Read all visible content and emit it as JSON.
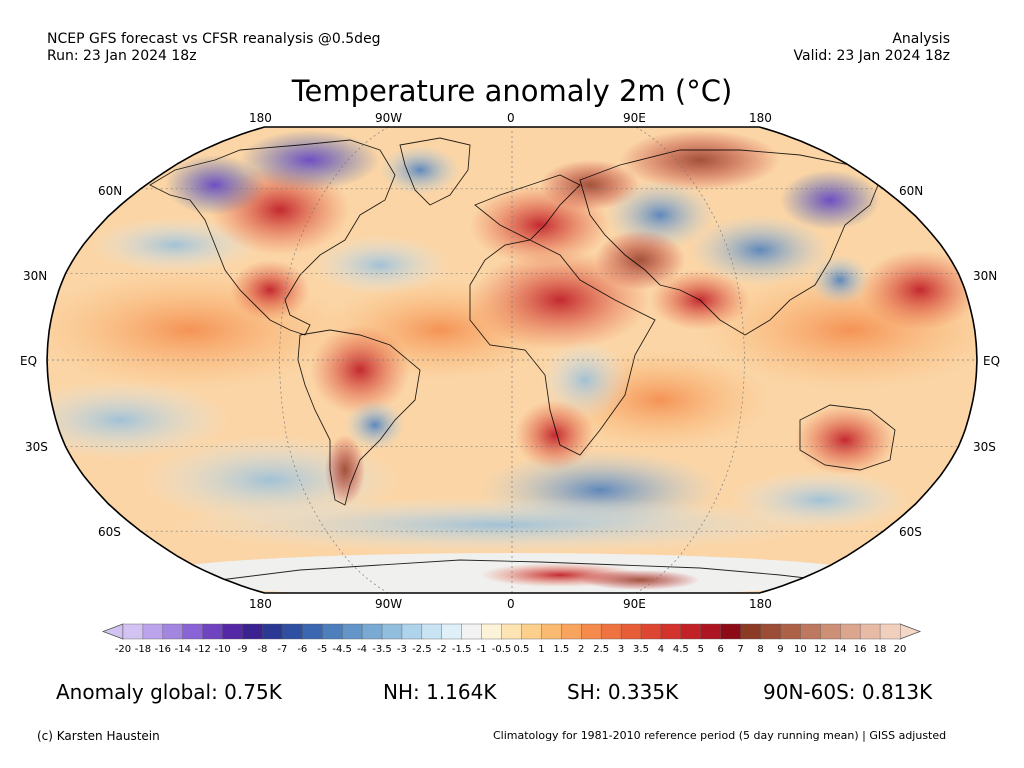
{
  "header": {
    "left_line1": "NCEP GFS forecast vs CFSR reanalysis @0.5deg",
    "left_line2": "Run: 23 Jan 2024 18z",
    "right_line1": "Analysis",
    "right_line2": "Valid: 23 Jan 2024 18z"
  },
  "title": "Temperature anomaly 2m (°C)",
  "map": {
    "projection": "Robinson",
    "lon_labels": [
      "180",
      "90W",
      "0",
      "90E",
      "180"
    ],
    "lat_labels_left": [
      "60N",
      "30N",
      "EQ",
      "30S",
      "60S"
    ],
    "lat_labels_right": [
      "60N",
      "30N",
      "EQ",
      "30S",
      "60S"
    ]
  },
  "colorbar": {
    "ticks": [
      "-20",
      "-18",
      "-16",
      "-14",
      "-12",
      "-10",
      "-9",
      "-8",
      "-7",
      "-6",
      "-5",
      "-4.5",
      "-4",
      "-3.5",
      "-3",
      "-2.5",
      "-2",
      "-1.5",
      "-1",
      "-0.5",
      "0.5",
      "1",
      "1.5",
      "2",
      "2.5",
      "3",
      "3.5",
      "4",
      "4.5",
      "5",
      "6",
      "7",
      "8",
      "9",
      "10",
      "12",
      "14",
      "16",
      "18",
      "20"
    ],
    "colors": [
      "#d2c3f2",
      "#bca4ec",
      "#a386e0",
      "#8a64d6",
      "#7044c0",
      "#5528a6",
      "#3a2391",
      "#2b3994",
      "#2f4fa3",
      "#3b66b0",
      "#4e7fbd",
      "#6395c8",
      "#7aaad3",
      "#92bede",
      "#aed3ea",
      "#c8e3f2",
      "#e0f0f8",
      "#f3f3f3",
      "#fdf3d8",
      "#fde4b2",
      "#fcd08c",
      "#fbba72",
      "#f8a35e",
      "#f48b4d",
      "#ef7341",
      "#e75d38",
      "#dd4631",
      "#d2332c",
      "#c22227",
      "#ad1522",
      "#8c0b17",
      "#8b3a24",
      "#9c4d35",
      "#ad6248",
      "#bd785f",
      "#cd8f76",
      "#dca58e",
      "#e8bba6",
      "#f1cfbd"
    ]
  },
  "stats": {
    "global": "Anomaly global: 0.75K",
    "nh": "NH: 1.164K",
    "sh": "SH: 0.335K",
    "arctic": "90N-60S: 0.813K"
  },
  "footer": {
    "credit": "(c) Karsten Haustein",
    "note": "Climatology for 1981-2010 reference period (5 day running mean) | GISS adjusted"
  }
}
